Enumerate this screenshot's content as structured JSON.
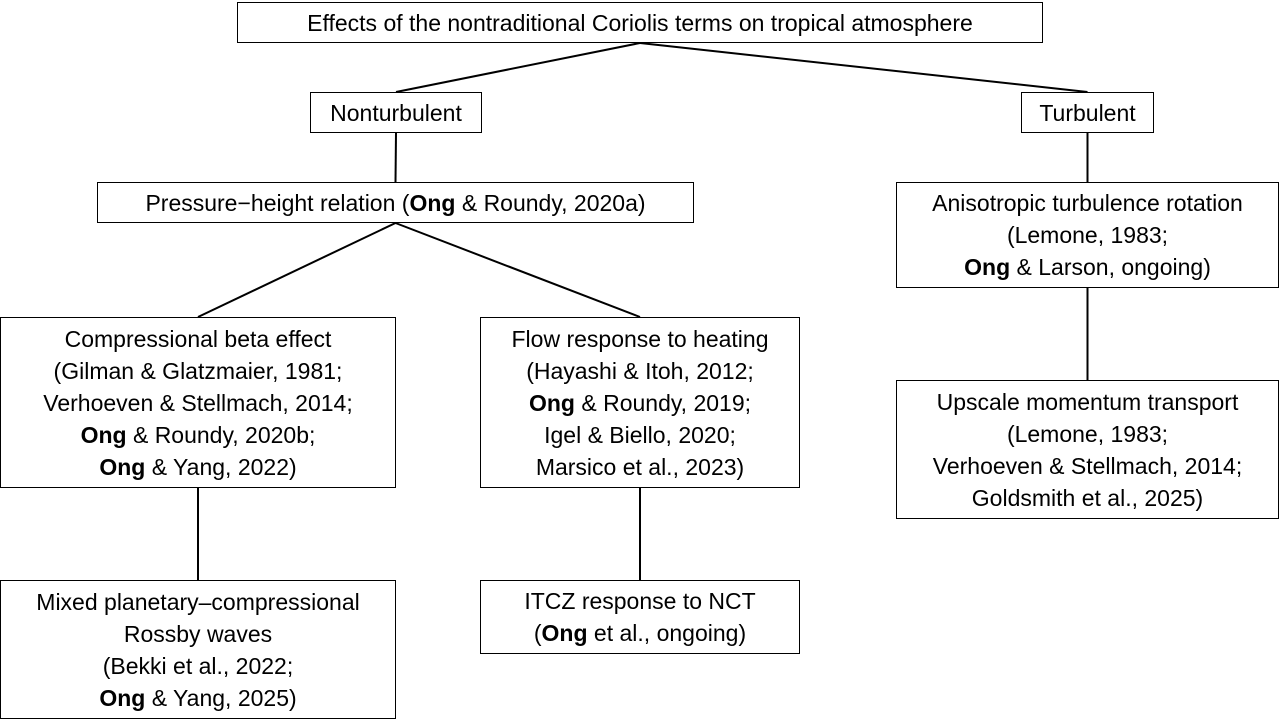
{
  "diagram": {
    "nodes": [
      {
        "id": "root",
        "lines": [
          [
            {
              "t": "Effects of the nontraditional Coriolis terms on tropical atmosphere"
            }
          ]
        ]
      },
      {
        "id": "nonturbulent",
        "lines": [
          [
            {
              "t": "Nonturbulent"
            }
          ]
        ]
      },
      {
        "id": "turbulent",
        "lines": [
          [
            {
              "t": "Turbulent"
            }
          ]
        ]
      },
      {
        "id": "pressure-height",
        "lines": [
          [
            {
              "t": "Pressure−height relation ("
            },
            {
              "t": "Ong",
              "b": true
            },
            {
              "t": " & Roundy, 2020a)"
            }
          ]
        ]
      },
      {
        "id": "anisotropic",
        "lines": [
          [
            {
              "t": "Anisotropic turbulence rotation"
            }
          ],
          [
            {
              "t": "(Lemone, 1983;"
            }
          ],
          [
            {
              "t": "Ong",
              "b": true
            },
            {
              "t": " & Larson, ongoing)"
            }
          ]
        ]
      },
      {
        "id": "compressional-beta",
        "lines": [
          [
            {
              "t": "Compressional beta effect"
            }
          ],
          [
            {
              "t": "(Gilman & Glatzmaier, 1981;"
            }
          ],
          [
            {
              "t": "Verhoeven & Stellmach, 2014;"
            }
          ],
          [
            {
              "t": "Ong",
              "b": true
            },
            {
              "t": " & Roundy, 2020b;"
            }
          ],
          [
            {
              "t": "Ong",
              "b": true
            },
            {
              "t": " & Yang, 2022)"
            }
          ]
        ]
      },
      {
        "id": "flow-response",
        "lines": [
          [
            {
              "t": "Flow response to heating"
            }
          ],
          [
            {
              "t": "(Hayashi & Itoh, 2012;"
            }
          ],
          [
            {
              "t": "Ong",
              "b": true
            },
            {
              "t": " & Roundy, 2019;"
            }
          ],
          [
            {
              "t": "Igel & Biello, 2020;"
            }
          ],
          [
            {
              "t": "Marsico et al., 2023)"
            }
          ]
        ]
      },
      {
        "id": "upscale-momentum",
        "lines": [
          [
            {
              "t": "Upscale momentum transport"
            }
          ],
          [
            {
              "t": "(Lemone, 1983;"
            }
          ],
          [
            {
              "t": "Verhoeven & Stellmach, 2014;"
            }
          ],
          [
            {
              "t": "Goldsmith et al., 2025)"
            }
          ]
        ]
      },
      {
        "id": "mixed-rossby",
        "lines": [
          [
            {
              "t": "Mixed planetary–compressional"
            }
          ],
          [
            {
              "t": "Rossby waves"
            }
          ],
          [
            {
              "t": "(Bekki et al., 2022;"
            }
          ],
          [
            {
              "t": "Ong",
              "b": true
            },
            {
              "t": " & Yang, 2025)"
            }
          ]
        ]
      },
      {
        "id": "itcz-response",
        "lines": [
          [
            {
              "t": "ITCZ response to NCT"
            }
          ],
          [
            {
              "t": "("
            },
            {
              "t": "Ong",
              "b": true
            },
            {
              "t": " et al., ongoing)"
            }
          ]
        ]
      }
    ],
    "edges": [
      [
        "root",
        "nonturbulent"
      ],
      [
        "root",
        "turbulent"
      ],
      [
        "nonturbulent",
        "pressure-height"
      ],
      [
        "turbulent",
        "anisotropic"
      ],
      [
        "pressure-height",
        "compressional-beta"
      ],
      [
        "pressure-height",
        "flow-response"
      ],
      [
        "anisotropic",
        "upscale-momentum"
      ],
      [
        "compressional-beta",
        "mixed-rossby"
      ],
      [
        "flow-response",
        "itcz-response"
      ]
    ]
  }
}
